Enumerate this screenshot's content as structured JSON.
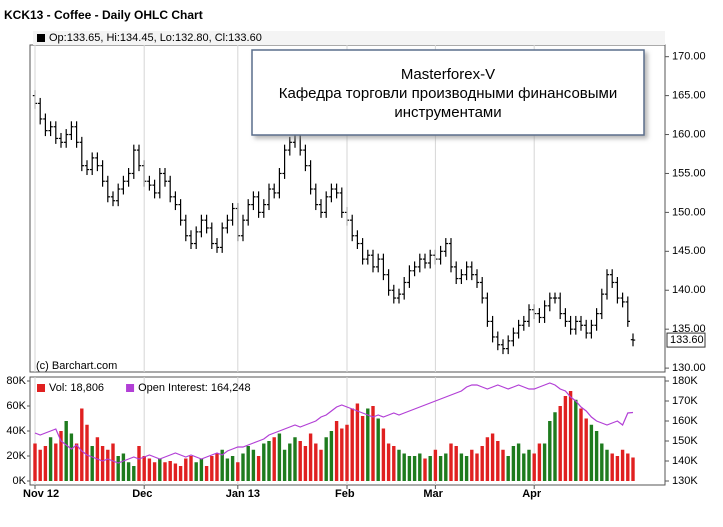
{
  "chart_data": [
    {
      "type": "ohlc",
      "title": "KCK13 - Coffee - Daily OHLC Chart",
      "legend": "Op:133.65, Hi:134.45, Lo:132.80, Cl:133.60",
      "last_label": "133.60",
      "credit": "(c) Barchart.com",
      "annotation": [
        "Masterforex-V",
        "Кафедра торговли производными финансовыми",
        "инструментами"
      ],
      "color": "#000000",
      "grid": "x",
      "ylim": [
        129.5,
        171.5
      ],
      "yticks": [
        {
          "value": 130,
          "label": "130.00"
        },
        {
          "value": 135,
          "label": "135.00"
        },
        {
          "value": 140,
          "label": "140.00"
        },
        {
          "value": 145,
          "label": "145.00"
        },
        {
          "value": 150,
          "label": "150.00"
        },
        {
          "value": 155,
          "label": "155.00"
        },
        {
          "value": 160,
          "label": "160.00"
        },
        {
          "value": 165,
          "label": "165.00"
        },
        {
          "value": 170,
          "label": "170.00"
        }
      ],
      "open": [
        165,
        164,
        162,
        160.5,
        161,
        159.5,
        159,
        160,
        161,
        159,
        156,
        155.5,
        157,
        156,
        154,
        152,
        151.5,
        153,
        154,
        155,
        158,
        156,
        154,
        153.5,
        152.5,
        155,
        154,
        152,
        151,
        149,
        147,
        146,
        147.5,
        149,
        148,
        146,
        145.5,
        148,
        149,
        150.5,
        147,
        149,
        151,
        152,
        150,
        151,
        153,
        152.5,
        155,
        158,
        159,
        160,
        158,
        156,
        153,
        151,
        150,
        152,
        153,
        152.5,
        150,
        149,
        147,
        146,
        144,
        144.5,
        143,
        144,
        142,
        140,
        139,
        139.5,
        141,
        142.5,
        143,
        144,
        143.5,
        144.5,
        144,
        145,
        146,
        143,
        141.5,
        142,
        143,
        142,
        141,
        139,
        136,
        134,
        133,
        132.5,
        133.5,
        134.5,
        135.5,
        136,
        137.5,
        137,
        136.5,
        138,
        139,
        139,
        137,
        136,
        135,
        136,
        135.5,
        134.5,
        135.5,
        137,
        139.5,
        142,
        141,
        139,
        138.5,
        133.65
      ],
      "high": [
        165.7,
        164.7,
        162.7,
        161.7,
        161.7,
        160.2,
        160.7,
        161.7,
        161.7,
        159.7,
        156.7,
        157.7,
        157.7,
        156.7,
        154.7,
        152.7,
        153.7,
        154.7,
        155.7,
        158.7,
        158.7,
        156.7,
        154.7,
        154.2,
        155.7,
        155.7,
        154.7,
        152.7,
        151.7,
        149.7,
        147.7,
        148.2,
        149.7,
        149.7,
        148.7,
        146.7,
        148.7,
        149.7,
        151.2,
        151.2,
        149.7,
        151.7,
        152.7,
        152.7,
        151.7,
        153.7,
        153.7,
        155.7,
        158.7,
        159.7,
        160.7,
        160.7,
        158.7,
        156.7,
        153.7,
        151.7,
        152.7,
        153.7,
        153.7,
        153.2,
        150.7,
        149.7,
        147.7,
        146.7,
        145.2,
        145.2,
        144.7,
        144.7,
        142.7,
        140.7,
        140.2,
        141.7,
        143.2,
        143.7,
        144.7,
        144.7,
        145.2,
        145.2,
        145.7,
        146.7,
        146.7,
        143.7,
        142.7,
        143.7,
        143.7,
        142.7,
        141.7,
        139.7,
        136.7,
        134.7,
        133.7,
        134.2,
        135.2,
        136.2,
        136.7,
        138.2,
        138.2,
        137.7,
        138.7,
        139.7,
        139.7,
        139.7,
        137.7,
        136.7,
        136.7,
        136.7,
        136.2,
        136.2,
        137.7,
        140.2,
        142.7,
        142.7,
        141.7,
        139.7,
        139.2,
        134.45
      ],
      "low": [
        163.3,
        161.3,
        159.8,
        159.8,
        158.8,
        158.3,
        158.3,
        159.3,
        158.3,
        155.3,
        154.8,
        154.8,
        155.3,
        153.3,
        151.3,
        150.8,
        150.8,
        152.3,
        153.3,
        154.3,
        155.3,
        153.3,
        152.8,
        151.8,
        151.8,
        153.3,
        151.3,
        150.3,
        148.3,
        146.3,
        145.3,
        145.3,
        146.8,
        147.3,
        145.3,
        144.8,
        144.8,
        147.3,
        148.3,
        146.3,
        146.3,
        148.3,
        150.3,
        149.3,
        149.3,
        150.3,
        151.8,
        151.8,
        154.3,
        157.3,
        158.3,
        157.3,
        155.3,
        152.3,
        150.3,
        149.3,
        149.3,
        151.3,
        151.8,
        149.3,
        148.3,
        146.3,
        145.3,
        143.3,
        143.3,
        142.3,
        142.3,
        141.3,
        139.3,
        138.3,
        138.3,
        138.8,
        140.3,
        141.8,
        142.3,
        142.8,
        142.8,
        143.3,
        143.3,
        144.3,
        142.3,
        140.8,
        140.8,
        141.3,
        141.3,
        140.3,
        138.3,
        135.3,
        133.3,
        132.3,
        131.8,
        131.8,
        132.8,
        133.8,
        134.8,
        135.3,
        136.3,
        135.8,
        135.8,
        137.3,
        138.3,
        136.3,
        135.3,
        134.3,
        134.3,
        134.8,
        133.8,
        133.8,
        134.8,
        136.3,
        138.8,
        140.3,
        138.3,
        137.8,
        135.3,
        132.8
      ],
      "close": [
        164,
        162,
        160.5,
        161,
        159.5,
        159,
        160,
        161,
        159,
        156,
        155.5,
        157,
        156,
        154,
        152,
        151.5,
        153,
        154,
        155,
        158,
        156,
        154,
        153.5,
        152.5,
        155,
        154,
        152,
        151,
        149,
        147,
        146,
        147.5,
        149,
        148,
        146,
        145.5,
        148,
        149,
        150.5,
        147,
        149,
        151,
        152,
        150,
        151,
        153,
        152.5,
        155,
        158,
        159,
        160,
        158,
        156,
        153,
        151,
        150,
        152,
        153,
        152.5,
        150,
        149,
        147,
        146,
        144,
        144.5,
        143,
        144,
        142,
        140,
        139,
        139.5,
        141,
        142.5,
        143,
        144,
        143.5,
        144.5,
        144,
        145,
        146,
        143,
        141.5,
        142,
        143,
        142,
        141,
        139,
        136,
        134,
        133,
        132.5,
        133.5,
        134.5,
        135.5,
        136,
        137.5,
        137,
        136.5,
        138,
        139,
        139,
        137,
        136,
        135,
        136,
        135.5,
        134.5,
        135.5,
        137,
        139.5,
        142,
        141,
        139,
        138.5,
        136,
        133.6
      ]
    },
    {
      "type": "bar",
      "categories": [
        "Nov 12",
        null,
        null,
        null,
        null,
        null,
        null,
        null,
        null,
        null,
        null,
        null,
        null,
        null,
        null,
        null,
        null,
        null,
        null,
        null,
        null,
        "Dec",
        null,
        null,
        null,
        null,
        null,
        null,
        null,
        null,
        null,
        null,
        null,
        null,
        null,
        null,
        null,
        null,
        null,
        "Jan 13",
        null,
        null,
        null,
        null,
        null,
        null,
        null,
        null,
        null,
        null,
        null,
        null,
        null,
        null,
        null,
        null,
        null,
        null,
        null,
        null,
        "Feb",
        null,
        null,
        null,
        null,
        null,
        null,
        null,
        null,
        null,
        null,
        null,
        null,
        null,
        null,
        null,
        null,
        "Mar",
        null,
        null,
        null,
        null,
        null,
        null,
        null,
        null,
        null,
        null,
        null,
        null,
        null,
        null,
        null,
        null,
        null,
        null,
        "Apr",
        null,
        null,
        null,
        null,
        null,
        null,
        null,
        null,
        null,
        null,
        null,
        null,
        null,
        null,
        null,
        null,
        null,
        null,
        null
      ],
      "ylim": [
        0,
        80000
      ],
      "yticks": [
        {
          "value": 0,
          "label": "0K"
        },
        {
          "value": 20000,
          "label": "20K"
        },
        {
          "value": 40000,
          "label": "40K"
        },
        {
          "value": 60000,
          "label": "60K"
        },
        {
          "value": 80000,
          "label": "80K"
        }
      ],
      "y2lim": [
        130000,
        180000
      ],
      "y2ticks": [
        {
          "value": 130000,
          "label": "130K"
        },
        {
          "value": 140000,
          "label": "140K"
        },
        {
          "value": 150000,
          "label": "150K"
        },
        {
          "value": 160000,
          "label": "160K"
        },
        {
          "value": 170000,
          "label": "170K"
        },
        {
          "value": 180000,
          "label": "180K"
        }
      ],
      "up_color": "#1e7b1e",
      "down_color": "#e02020",
      "series": [
        {
          "name": "Vol: 18,806",
          "color": "#e02020",
          "values": [
            30000,
            25000,
            28000,
            35000,
            30000,
            40000,
            48000,
            38000,
            30000,
            58000,
            45000,
            28000,
            35000,
            28000,
            25000,
            30000,
            20000,
            22000,
            15000,
            12000,
            28000,
            20000,
            18000,
            15000,
            18000,
            15000,
            16000,
            14000,
            12000,
            18000,
            20000,
            15000,
            18000,
            12000,
            20000,
            22000,
            25000,
            18000,
            20000,
            15000,
            22000,
            28000,
            25000,
            20000,
            30000,
            32000,
            35000,
            38000,
            25000,
            30000,
            35000,
            32000,
            28000,
            38000,
            30000,
            25000,
            35000,
            40000,
            48000,
            42000,
            45000,
            58000,
            62000,
            52000,
            58000,
            60000,
            50000,
            42000,
            30000,
            28000,
            25000,
            22000,
            20000,
            20000,
            22000,
            18000,
            20000,
            25000,
            20000,
            22000,
            30000,
            28000,
            22000,
            20000,
            25000,
            22000,
            28000,
            35000,
            38000,
            32000,
            25000,
            20000,
            28000,
            30000,
            22000,
            25000,
            22000,
            30000,
            30000,
            48000,
            55000,
            60000,
            68000,
            72000,
            65000,
            58000,
            50000,
            45000,
            40000,
            30000,
            25000,
            22000,
            20000,
            25000,
            22000,
            18806
          ]
        },
        {
          "name": "Open Interest: 164,248",
          "color": "#b23fd6",
          "axis": "y2",
          "values": [
            154000,
            153000,
            154000,
            155000,
            156000,
            150000,
            148000,
            146000,
            148000,
            145000,
            143000,
            142000,
            141000,
            140000,
            141000,
            140000,
            139000,
            140000,
            141000,
            142000,
            141000,
            142000,
            143000,
            142000,
            141000,
            142000,
            143000,
            144000,
            143000,
            142000,
            143000,
            142000,
            141000,
            142000,
            143000,
            144000,
            143000,
            145000,
            146000,
            147000,
            147000,
            148000,
            149000,
            150000,
            151000,
            153000,
            154000,
            155000,
            156000,
            157000,
            158000,
            157000,
            158000,
            159000,
            160000,
            162000,
            163000,
            165000,
            167000,
            168000,
            167000,
            166000,
            165000,
            164000,
            163000,
            162000,
            163000,
            162000,
            163000,
            164000,
            163000,
            164000,
            165000,
            166000,
            167000,
            168000,
            169000,
            170000,
            171000,
            172000,
            173000,
            174000,
            175000,
            177000,
            178000,
            178000,
            177000,
            176000,
            177000,
            178000,
            177000,
            176000,
            177000,
            178000,
            177000,
            176000,
            176000,
            177000,
            178000,
            179000,
            178000,
            176000,
            175000,
            172000,
            170000,
            167000,
            165000,
            162000,
            160000,
            159000,
            158000,
            159000,
            160000,
            158000,
            164000,
            164248
          ]
        }
      ]
    }
  ]
}
